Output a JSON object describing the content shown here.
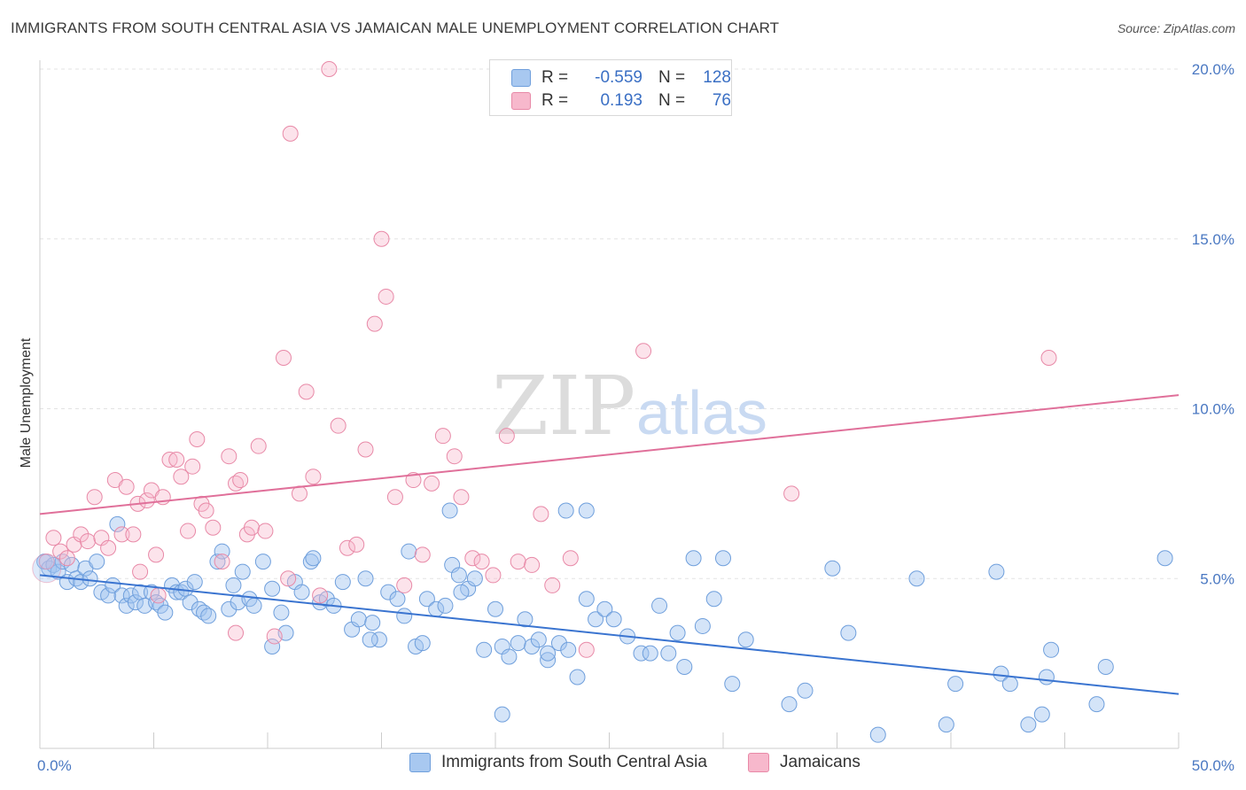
{
  "title": "IMMIGRANTS FROM SOUTH CENTRAL ASIA VS JAMAICAN MALE UNEMPLOYMENT CORRELATION CHART",
  "source": "Source: ZipAtlas.com",
  "watermark": {
    "zip": "ZIP",
    "atlas": "atlas"
  },
  "legend": {
    "rows": [
      {
        "r_label": "R =",
        "r_value": "-0.559",
        "n_label": "N =",
        "n_value": "128",
        "color": "#a8c8f0",
        "border": "#6f9fdc"
      },
      {
        "r_label": "R =",
        "r_value": "0.193",
        "n_label": "N =",
        "n_value": "76",
        "color": "#f7b8cc",
        "border": "#e889a7"
      }
    ]
  },
  "bottom_legend": [
    {
      "label": "Immigrants from South Central Asia",
      "color": "#a8c8f0",
      "border": "#6f9fdc"
    },
    {
      "label": "Jamaicans",
      "color": "#f7b8cc",
      "border": "#e889a7"
    }
  ],
  "chart_data": {
    "type": "scatter",
    "ylabel": "Male Unemployment",
    "xlim": [
      0,
      50
    ],
    "ylim": [
      0,
      20
    ],
    "x_tick_labels": [
      {
        "value": 0,
        "label": "0.0%"
      },
      {
        "value": 50,
        "label": "50.0%"
      }
    ],
    "y_tick_labels": [
      {
        "value": 5,
        "label": "5.0%"
      },
      {
        "value": 10,
        "label": "10.0%"
      },
      {
        "value": 15,
        "label": "15.0%"
      },
      {
        "value": 20,
        "label": "20.0%"
      }
    ],
    "grid": true,
    "series": [
      {
        "name": "Immigrants from South Central Asia",
        "color": "#6f9fdc",
        "fill": "rgba(160,195,240,0.45)",
        "trend": {
          "x": [
            0,
            50
          ],
          "y": [
            5.1,
            1.6
          ],
          "color": "#3a74d0"
        },
        "points": [
          [
            0.2,
            5.5
          ],
          [
            0.4,
            5.3
          ],
          [
            0.6,
            5.4
          ],
          [
            0.8,
            5.2
          ],
          [
            1.0,
            5.5
          ],
          [
            1.2,
            4.9
          ],
          [
            1.4,
            5.4
          ],
          [
            1.6,
            5.0
          ],
          [
            1.8,
            4.9
          ],
          [
            2.0,
            5.3
          ],
          [
            2.2,
            5.0
          ],
          [
            2.5,
            5.5
          ],
          [
            2.7,
            4.6
          ],
          [
            3.0,
            4.5
          ],
          [
            3.2,
            4.8
          ],
          [
            3.4,
            6.6
          ],
          [
            3.6,
            4.5
          ],
          [
            3.8,
            4.2
          ],
          [
            4.0,
            4.5
          ],
          [
            4.2,
            4.3
          ],
          [
            4.4,
            4.6
          ],
          [
            4.6,
            4.2
          ],
          [
            4.9,
            4.6
          ],
          [
            5.1,
            4.3
          ],
          [
            5.3,
            4.2
          ],
          [
            5.5,
            4.0
          ],
          [
            5.8,
            4.8
          ],
          [
            6.0,
            4.6
          ],
          [
            6.2,
            4.6
          ],
          [
            6.4,
            4.7
          ],
          [
            6.6,
            4.3
          ],
          [
            6.8,
            4.9
          ],
          [
            7.0,
            4.1
          ],
          [
            7.2,
            4.0
          ],
          [
            7.4,
            3.9
          ],
          [
            7.8,
            5.5
          ],
          [
            8.0,
            5.8
          ],
          [
            8.3,
            4.1
          ],
          [
            8.5,
            4.8
          ],
          [
            8.7,
            4.3
          ],
          [
            8.9,
            5.2
          ],
          [
            9.2,
            4.4
          ],
          [
            9.4,
            4.2
          ],
          [
            9.8,
            5.5
          ],
          [
            10.2,
            3.0
          ],
          [
            10.6,
            4.0
          ],
          [
            10.8,
            3.4
          ],
          [
            11.2,
            4.9
          ],
          [
            11.5,
            4.6
          ],
          [
            11.9,
            5.5
          ],
          [
            12.3,
            4.3
          ],
          [
            12.6,
            4.4
          ],
          [
            12.9,
            4.2
          ],
          [
            13.3,
            4.9
          ],
          [
            13.7,
            3.5
          ],
          [
            14.0,
            3.8
          ],
          [
            14.3,
            5.0
          ],
          [
            14.6,
            3.7
          ],
          [
            14.9,
            3.2
          ],
          [
            15.3,
            4.6
          ],
          [
            15.7,
            4.4
          ],
          [
            16.0,
            3.9
          ],
          [
            16.5,
            3.0
          ],
          [
            16.8,
            3.1
          ],
          [
            17.0,
            4.4
          ],
          [
            17.4,
            4.1
          ],
          [
            17.8,
            4.2
          ],
          [
            18.1,
            5.4
          ],
          [
            18.4,
            5.1
          ],
          [
            18.8,
            4.7
          ],
          [
            19.1,
            5.0
          ],
          [
            19.5,
            2.9
          ],
          [
            20.0,
            4.1
          ],
          [
            20.3,
            3.0
          ],
          [
            20.6,
            2.7
          ],
          [
            21.0,
            3.1
          ],
          [
            21.3,
            3.8
          ],
          [
            21.6,
            3.0
          ],
          [
            21.9,
            3.2
          ],
          [
            22.3,
            2.6
          ],
          [
            22.8,
            3.1
          ],
          [
            23.2,
            2.9
          ],
          [
            23.6,
            2.1
          ],
          [
            24.0,
            4.4
          ],
          [
            24.4,
            3.8
          ],
          [
            24.8,
            4.1
          ],
          [
            25.2,
            3.8
          ],
          [
            25.8,
            3.3
          ],
          [
            26.4,
            2.8
          ],
          [
            26.8,
            2.8
          ],
          [
            27.2,
            4.2
          ],
          [
            27.6,
            2.8
          ],
          [
            28.0,
            3.4
          ],
          [
            28.3,
            2.4
          ],
          [
            28.7,
            5.6
          ],
          [
            29.1,
            3.6
          ],
          [
            29.6,
            4.4
          ],
          [
            30.0,
            5.6
          ],
          [
            30.4,
            1.9
          ],
          [
            31.0,
            3.2
          ],
          [
            33.6,
            1.7
          ],
          [
            34.8,
            5.3
          ],
          [
            35.5,
            3.4
          ],
          [
            36.8,
            0.4
          ],
          [
            38.5,
            5.0
          ],
          [
            39.8,
            0.7
          ],
          [
            40.2,
            1.9
          ],
          [
            42.0,
            5.2
          ],
          [
            42.2,
            2.2
          ],
          [
            42.6,
            1.9
          ],
          [
            43.4,
            0.7
          ],
          [
            44.0,
            1.0
          ],
          [
            44.2,
            2.1
          ],
          [
            44.4,
            2.9
          ],
          [
            46.4,
            1.3
          ],
          [
            46.8,
            2.4
          ],
          [
            49.4,
            5.6
          ],
          [
            16.2,
            5.8
          ],
          [
            18.5,
            4.6
          ],
          [
            22.3,
            2.8
          ],
          [
            23.1,
            7.0
          ],
          [
            24.0,
            7.0
          ],
          [
            14.5,
            3.2
          ],
          [
            18.0,
            7.0
          ],
          [
            10.2,
            4.7
          ],
          [
            12.0,
            5.6
          ],
          [
            20.3,
            1.0
          ],
          [
            32.9,
            1.3
          ]
        ]
      },
      {
        "name": "Jamaicans",
        "color": "#e889a7",
        "fill": "rgba(247,184,204,0.40)",
        "trend": {
          "x": [
            0,
            50
          ],
          "y": [
            6.9,
            10.4
          ],
          "color": "#e0709a"
        },
        "points": [
          [
            0.3,
            5.5
          ],
          [
            0.6,
            6.2
          ],
          [
            0.9,
            5.8
          ],
          [
            1.2,
            5.6
          ],
          [
            1.5,
            6.0
          ],
          [
            1.8,
            6.3
          ],
          [
            2.1,
            6.1
          ],
          [
            2.4,
            7.4
          ],
          [
            2.7,
            6.2
          ],
          [
            3.0,
            5.9
          ],
          [
            3.3,
            7.9
          ],
          [
            3.6,
            6.3
          ],
          [
            3.8,
            7.7
          ],
          [
            4.1,
            6.3
          ],
          [
            4.3,
            7.2
          ],
          [
            4.4,
            5.2
          ],
          [
            4.7,
            7.3
          ],
          [
            4.9,
            7.6
          ],
          [
            5.1,
            5.7
          ],
          [
            5.4,
            7.4
          ],
          [
            5.7,
            8.5
          ],
          [
            6.0,
            8.5
          ],
          [
            6.2,
            8.0
          ],
          [
            6.5,
            6.4
          ],
          [
            6.7,
            8.3
          ],
          [
            6.9,
            9.1
          ],
          [
            7.1,
            7.2
          ],
          [
            7.3,
            7.0
          ],
          [
            7.6,
            6.5
          ],
          [
            8.0,
            5.5
          ],
          [
            8.3,
            8.6
          ],
          [
            8.6,
            7.8
          ],
          [
            8.8,
            7.9
          ],
          [
            9.1,
            6.3
          ],
          [
            9.3,
            6.5
          ],
          [
            9.6,
            8.9
          ],
          [
            9.9,
            6.4
          ],
          [
            10.3,
            3.3
          ],
          [
            10.7,
            11.5
          ],
          [
            11.0,
            18.1
          ],
          [
            11.4,
            7.5
          ],
          [
            11.7,
            10.5
          ],
          [
            12.0,
            8.0
          ],
          [
            12.3,
            4.5
          ],
          [
            12.7,
            20.0
          ],
          [
            13.1,
            9.5
          ],
          [
            13.5,
            5.9
          ],
          [
            13.9,
            6.0
          ],
          [
            14.3,
            8.8
          ],
          [
            14.7,
            12.5
          ],
          [
            15.0,
            15.0
          ],
          [
            15.2,
            13.3
          ],
          [
            15.6,
            7.4
          ],
          [
            16.0,
            4.8
          ],
          [
            16.4,
            7.9
          ],
          [
            16.8,
            5.7
          ],
          [
            17.2,
            7.8
          ],
          [
            17.7,
            9.2
          ],
          [
            18.2,
            8.6
          ],
          [
            18.5,
            7.4
          ],
          [
            19.0,
            5.6
          ],
          [
            19.4,
            5.5
          ],
          [
            19.9,
            5.1
          ],
          [
            20.5,
            9.2
          ],
          [
            21.0,
            5.5
          ],
          [
            21.6,
            5.4
          ],
          [
            22.0,
            6.9
          ],
          [
            22.5,
            4.8
          ],
          [
            23.3,
            5.6
          ],
          [
            24.0,
            2.9
          ],
          [
            26.5,
            11.7
          ],
          [
            33.0,
            7.5
          ],
          [
            44.3,
            11.5
          ],
          [
            8.6,
            3.4
          ],
          [
            5.2,
            4.5
          ],
          [
            10.9,
            5.0
          ]
        ]
      }
    ]
  }
}
